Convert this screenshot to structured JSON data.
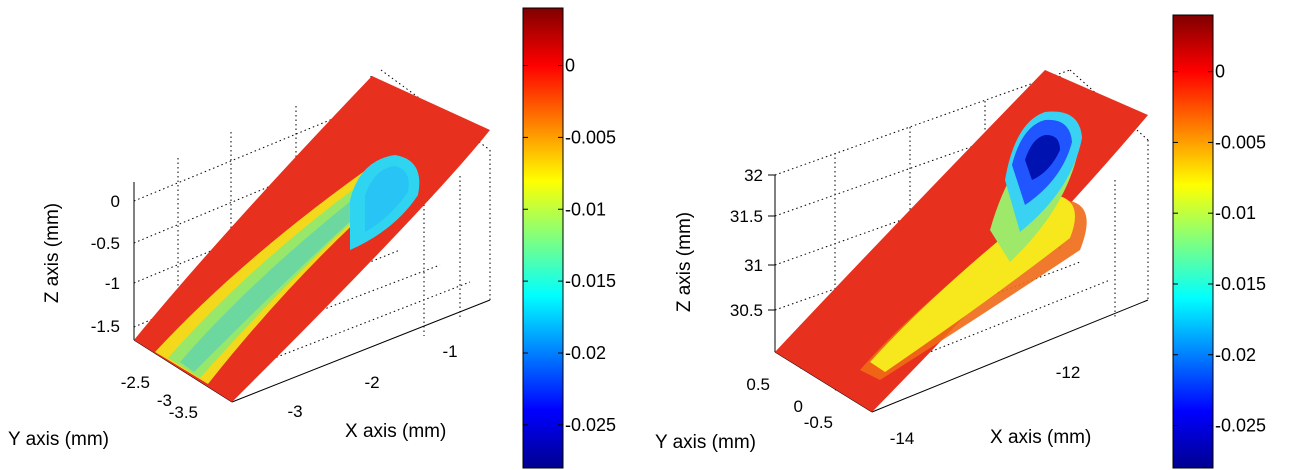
{
  "chart_data": [
    {
      "type": "surface",
      "zlabel": "Z axis (mm)",
      "ylabel": "Y axis (mm)",
      "xlabel": "X axis (mm)",
      "z_ticks": [
        "0",
        "-0.5",
        "-1",
        "-1.5"
      ],
      "y_ticks": [
        "-2.5",
        "-3",
        "-3.5"
      ],
      "x_ticks": [
        "-3",
        "-2",
        "-1"
      ],
      "color_min": -0.028,
      "color_max": 0.004,
      "colorbar_ticks": [
        "0",
        "-0.005",
        "-0.01",
        "-0.015",
        "-0.02",
        "-0.025"
      ],
      "colorbar_values": [
        0,
        -0.005,
        -0.01,
        -0.015,
        -0.02,
        -0.025
      ],
      "field": {
        "background": 0.0,
        "band_value": -0.013,
        "blob_value": -0.016
      },
      "grid": true,
      "colormap": "jet"
    },
    {
      "type": "surface",
      "zlabel": "Z axis (mm)",
      "ylabel": "Y axis (mm)",
      "xlabel": "X axis (mm)",
      "z_ticks": [
        "32",
        "31.5",
        "31",
        "30.5"
      ],
      "y_ticks": [
        "0.5",
        "0",
        "-0.5"
      ],
      "x_ticks": [
        "-14",
        "-12"
      ],
      "color_min": -0.028,
      "color_max": 0.004,
      "colorbar_ticks": [
        "0",
        "-0.005",
        "-0.01",
        "-0.015",
        "-0.02",
        "-0.025"
      ],
      "colorbar_values": [
        0,
        -0.005,
        -0.01,
        -0.015,
        -0.02,
        -0.025
      ],
      "field": {
        "background": 0.0,
        "band_value": -0.006,
        "blob_value": -0.026
      },
      "grid": true,
      "colormap": "jet"
    }
  ]
}
